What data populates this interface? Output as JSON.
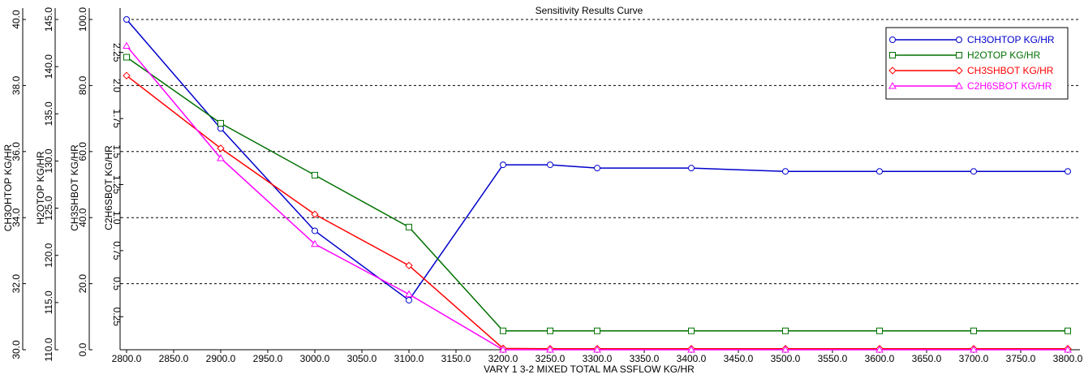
{
  "chart_data": {
    "type": "line",
    "title": "Sensitivity Results Curve",
    "xlabel": "VARY   1 3-2 MIXED TOTAL MA SSFLOW KG/HR",
    "x": [
      2800,
      2900,
      3000,
      3100,
      3200,
      3250,
      3300,
      3400,
      3500,
      3600,
      3700,
      3800
    ],
    "xlim": [
      2800,
      3800
    ],
    "xticks": [
      "2800.0",
      "2850.0",
      "2900.0",
      "2950.0",
      "3000.0",
      "3050.0",
      "3100.0",
      "3150.0",
      "3200.0",
      "3250.0",
      "3300.0",
      "3350.0",
      "3400.0",
      "3450.0",
      "3500.0",
      "3550.0",
      "3600.0",
      "3650.0",
      "3700.0",
      "3750.0",
      "3800.0"
    ],
    "xtick_values": [
      2800,
      2850,
      2900,
      2950,
      3000,
      3050,
      3100,
      3150,
      3200,
      3250,
      3300,
      3350,
      3400,
      3450,
      3500,
      3550,
      3600,
      3650,
      3700,
      3750,
      3800
    ],
    "grid": "horizontal-dashed",
    "legend_position": "top-right",
    "axes": [
      {
        "label": "CH3OHTOP KG/HR",
        "ylim": [
          30,
          40
        ],
        "ticks": [
          "30.0",
          "32.0",
          "34.0",
          "36.0",
          "38.0",
          "40.0"
        ],
        "tick_values": [
          30,
          32,
          34,
          36,
          38,
          40
        ],
        "rotate": -90
      },
      {
        "label": "H2OTOP KG/HR",
        "ylim": [
          110,
          145
        ],
        "ticks": [
          "110.0",
          "115.0",
          "120.0",
          "125.0",
          "130.0",
          "135.0",
          "140.0",
          "145.0"
        ],
        "tick_values": [
          110,
          115,
          120,
          125,
          130,
          135,
          140,
          145
        ],
        "rotate": -90
      },
      {
        "label": "CH3SHBOT KG/HR",
        "ylim": [
          0,
          100
        ],
        "ticks": [
          "0.0",
          "20.0",
          "40.0",
          "60.0",
          "80.0",
          "100.0"
        ],
        "tick_values": [
          0,
          20,
          40,
          60,
          80,
          100
        ],
        "rotate": -90
      },
      {
        "label": "C2H6SBOT KG/HR",
        "ylim": [
          0,
          2.5
        ],
        "ticks": [
          "0.25",
          "0.5",
          "0.75",
          "1.0",
          "1.25",
          "1.5",
          "1.75",
          "2.0",
          "2.25"
        ],
        "tick_values": [
          0.25,
          0.5,
          0.75,
          1.0,
          1.25,
          1.5,
          1.75,
          2.0,
          2.25
        ],
        "rotate": 90
      }
    ],
    "series": [
      {
        "name": "CH3OHTOP KG/HR",
        "axis": 0,
        "color": "#0000cc",
        "marker": "circle",
        "values": [
          40.0,
          36.7,
          33.6,
          31.5,
          35.6,
          35.6,
          35.5,
          35.5,
          35.4,
          35.4,
          35.4,
          35.4
        ]
      },
      {
        "name": "H2OTOP KG/HR",
        "axis": 1,
        "color": "#007000",
        "marker": "square",
        "values": [
          141.0,
          134.0,
          128.5,
          123.0,
          112.0,
          112.0,
          112.0,
          112.0,
          112.0,
          112.0,
          112.0,
          112.0
        ]
      },
      {
        "name": "CH3SHBOT KG/HR",
        "axis": 2,
        "color": "#ff0000",
        "marker": "diamond",
        "values": [
          83.0,
          61.0,
          41.0,
          25.5,
          0.4,
          0.3,
          0.3,
          0.3,
          0.3,
          0.3,
          0.3,
          0.3
        ]
      },
      {
        "name": "C2H6SBOT KG/HR",
        "axis": 3,
        "color": "#ff00ff",
        "marker": "triangle",
        "values": [
          2.3,
          1.45,
          0.8,
          0.42,
          0.0,
          0.0,
          0.0,
          0.0,
          0.0,
          0.0,
          0.0,
          0.0
        ]
      }
    ]
  }
}
